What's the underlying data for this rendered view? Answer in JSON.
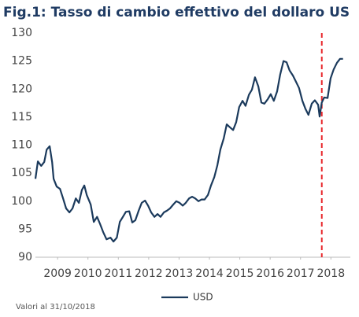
{
  "chart_data": {
    "type": "line",
    "title": "Fig.1: Tasso di cambio effettivo del dollaro US",
    "note": "Valori al 31/10/2018",
    "x": [
      2008.77,
      2008.85,
      2008.96,
      2009.06,
      2009.14,
      2009.24,
      2009.32,
      2009.37,
      2009.47,
      2009.58,
      2009.68,
      2009.78,
      2009.89,
      2009.99,
      2010.1,
      2010.2,
      2010.3,
      2010.38,
      2010.46,
      2010.59,
      2010.69,
      2010.8,
      2010.9,
      2011.0,
      2011.11,
      2011.24,
      2011.34,
      2011.45,
      2011.55,
      2011.65,
      2011.75,
      2011.86,
      2011.96,
      2012.06,
      2012.17,
      2012.27,
      2012.38,
      2012.48,
      2012.58,
      2012.69,
      2012.79,
      2012.89,
      2013.0,
      2013.1,
      2013.2,
      2013.31,
      2013.41,
      2013.52,
      2013.62,
      2013.72,
      2013.83,
      2013.93,
      2014.03,
      2014.14,
      2014.24,
      2014.34,
      2014.45,
      2014.55,
      2014.66,
      2014.76,
      2014.86,
      2014.97,
      2015.07,
      2015.17,
      2015.28,
      2015.38,
      2015.48,
      2015.59,
      2015.69,
      2015.8,
      2015.9,
      2016.0,
      2016.11,
      2016.21,
      2016.31,
      2016.42,
      2016.52,
      2016.62,
      2016.73,
      2016.83,
      2016.94,
      2017.04,
      2017.14,
      2017.25,
      2017.35,
      2017.45,
      2017.56,
      2017.66,
      2017.76,
      2017.87,
      2017.97,
      2018.08,
      2018.13,
      2018.2,
      2018.28,
      2018.39,
      2018.49,
      2018.59,
      2018.7,
      2018.8,
      2018.9
    ],
    "series": [
      {
        "name": "USD",
        "color": "#1b3a5c",
        "values": [
          104,
          107.1,
          106.3,
          107,
          109.2,
          109.8,
          107,
          104,
          102.6,
          102.2,
          100.5,
          98.7,
          98,
          98.7,
          100.5,
          99.7,
          102,
          102.8,
          101.1,
          99.4,
          96.3,
          97.2,
          95.9,
          94.5,
          93.2,
          93.5,
          92.8,
          93.5,
          96.3,
          97.2,
          98.1,
          98.2,
          96.2,
          96.6,
          98.3,
          99.7,
          100.1,
          99.2,
          98,
          97.2,
          97.7,
          97.2,
          98,
          98.3,
          98.7,
          99.4,
          100,
          99.7,
          99.2,
          99.7,
          100.5,
          100.8,
          100.5,
          100,
          100.3,
          100.3,
          101.1,
          102.8,
          104.3,
          106.4,
          109.2,
          111.2,
          113.7,
          113.2,
          112.7,
          114.1,
          116.8,
          117.9,
          117,
          119,
          119.9,
          122.1,
          120.5,
          117.6,
          117.4,
          118.2,
          119.1,
          117.9,
          119.6,
          122.6,
          125,
          124.8,
          123.3,
          122.4,
          121.3,
          120.2,
          117.9,
          116.5,
          115.4,
          117.4,
          118,
          117.2,
          115.1,
          117.6,
          118.5,
          118.4,
          121.9,
          123.5,
          124.7,
          125.4,
          125.4
        ]
      }
    ],
    "vline": {
      "x": 2018.2,
      "color": "#e8262a"
    },
    "xlim": [
      2008.77,
      2019.14
    ],
    "xticks": [
      {
        "value": 2009.5,
        "label": "2009"
      },
      {
        "value": 2010.5,
        "label": "2010"
      },
      {
        "value": 2011.5,
        "label": "2011"
      },
      {
        "value": 2012.5,
        "label": "2012"
      },
      {
        "value": 2013.5,
        "label": "2013"
      },
      {
        "value": 2014.5,
        "label": "2014"
      },
      {
        "value": 2015.5,
        "label": "2015"
      },
      {
        "value": 2016.5,
        "label": "2016"
      },
      {
        "value": 2017.5,
        "label": "2017"
      },
      {
        "value": 2018.5,
        "label": "2018"
      }
    ],
    "ylim": [
      90,
      130
    ],
    "yticks": [
      90,
      95,
      100,
      105,
      110,
      115,
      120,
      125,
      130
    ],
    "legend": "bottom"
  }
}
